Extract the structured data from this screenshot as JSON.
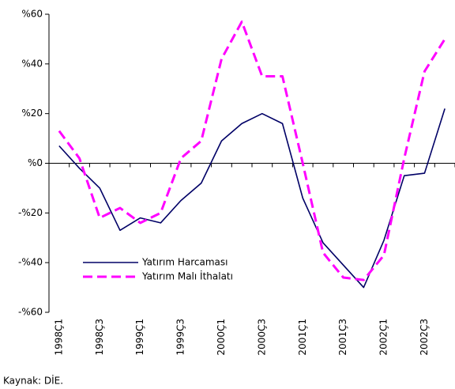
{
  "chart_data": {
    "type": "line",
    "source": "Kaynak: DİE.",
    "categories": [
      "1998Ç1",
      null,
      "1998Ç3",
      null,
      "1999Ç1",
      null,
      "1999Ç3",
      null,
      "2000Ç1",
      null,
      "2000Ç3",
      null,
      "2001Ç1",
      null,
      "2001Ç3",
      null,
      "2002Ç1",
      null,
      "2002Ç3",
      null
    ],
    "series": [
      {
        "name": "Yatırım Harcaması",
        "color": "#000066",
        "values": [
          7,
          -2,
          -10,
          -27,
          -22,
          -24,
          -15,
          -8,
          9,
          16,
          20,
          16,
          -14,
          -32,
          -41,
          -50,
          -31,
          -5,
          -4,
          22
        ]
      },
      {
        "name": "Yatırım Malı İthalatı",
        "color": "#ff00ff",
        "values": [
          13,
          2,
          -22,
          -18,
          -24,
          -20,
          2,
          9,
          42,
          57,
          35,
          35,
          0,
          -36,
          -46,
          -47,
          -37,
          2,
          37,
          50
        ]
      }
    ],
    "ylim": [
      -60,
      60
    ],
    "yticks": [
      {
        "value": 60,
        "label": "%60"
      },
      {
        "value": 40,
        "label": "%40"
      },
      {
        "value": 20,
        "label": "%20"
      },
      {
        "value": 0,
        "label": "%0"
      },
      {
        "value": -20,
        "label": "-%20"
      },
      {
        "value": -40,
        "label": "-%40"
      },
      {
        "value": -60,
        "label": "-%60"
      }
    ],
    "legend": "lower left"
  }
}
